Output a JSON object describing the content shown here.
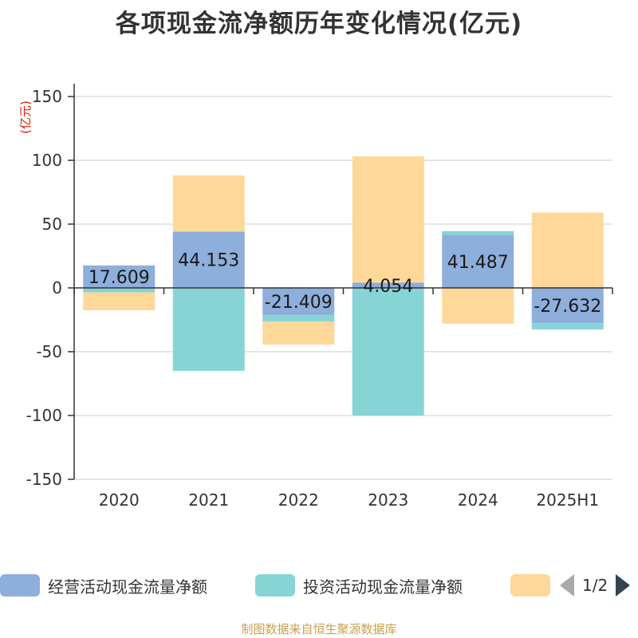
{
  "title": "各项现金流净额历年变化情况(亿元)",
  "source": "制图数据来自恒生聚源数据库",
  "legend": {
    "items": [
      {
        "label": "经营活动现金流量净额",
        "color": "#8eaedc"
      },
      {
        "label": "投资活动现金流量净额",
        "color": "#87d4d6"
      },
      {
        "label": "",
        "color": "#fed898"
      }
    ],
    "page": "1/2"
  },
  "chart_data": {
    "type": "bar",
    "stacked": true,
    "categories": [
      "2020",
      "2021",
      "2022",
      "2023",
      "2024",
      "2025H1"
    ],
    "ylabel": "(亿元)",
    "ylim": [
      -150,
      150
    ],
    "yticks": [
      150,
      100,
      50,
      0,
      -50,
      -100,
      -150
    ],
    "grid": true,
    "legend_position": "bottom",
    "series": [
      {
        "name": "经营活动现金流量净额",
        "color": "#8eaedc",
        "values": [
          17.609,
          44.153,
          -21.409,
          4.054,
          41.487,
          -27.632
        ],
        "labels": [
          "17.609",
          "44.153",
          "-21.409",
          "4.054",
          "41.487",
          "-27.632"
        ]
      },
      {
        "name": "投资活动现金流量净额",
        "color": "#87d4d6",
        "values": [
          -3.5,
          -65.0,
          -5.0,
          -100.0,
          3.0,
          -5.0
        ]
      },
      {
        "name": "",
        "color": "#fed898",
        "values": [
          -14.0,
          44.0,
          -18.0,
          99.0,
          -28.0,
          59.0
        ]
      }
    ]
  }
}
